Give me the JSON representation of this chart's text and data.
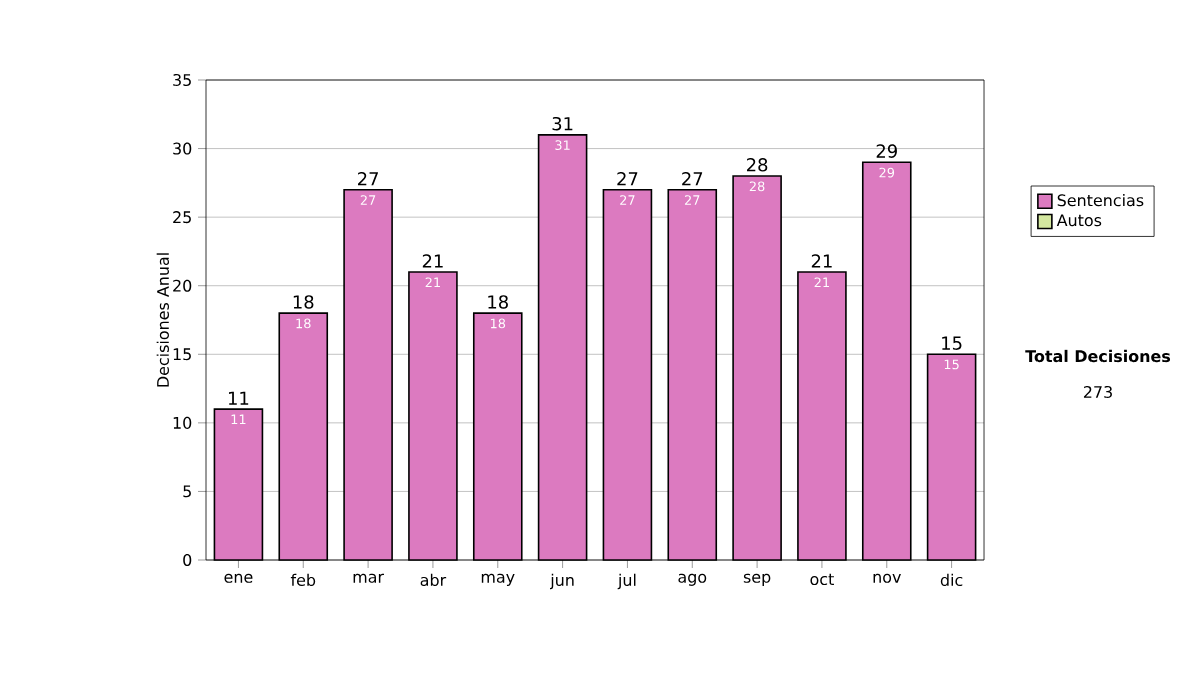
{
  "chart_data": {
    "type": "bar",
    "ylabel": "Decisiones Anual",
    "categories": [
      "ene",
      "feb",
      "mar",
      "abr",
      "may",
      "jun",
      "jul",
      "ago",
      "sep",
      "oct",
      "nov",
      "dic"
    ],
    "series": [
      {
        "name": "Sentencias",
        "color": "#dc7ac0",
        "values": [
          11,
          18,
          27,
          21,
          18,
          31,
          27,
          27,
          28,
          21,
          29,
          15
        ],
        "value_labels": [
          "11",
          "18",
          "27",
          "21",
          "18",
          "31",
          "27",
          "27",
          "28",
          "21",
          "29",
          "15"
        ]
      },
      {
        "name": "Autos",
        "color": "#d4e8a0",
        "values": [
          0,
          0,
          0,
          0,
          0,
          0,
          0,
          0,
          0,
          0,
          0,
          0
        ]
      }
    ],
    "stacked": true,
    "totals": [
      "11",
      "18",
      "27",
      "21",
      "18",
      "31",
      "27",
      "27",
      "28",
      "21",
      "29",
      "15"
    ],
    "ylim": [
      0,
      35
    ],
    "yticks": [
      0,
      5,
      10,
      15,
      20,
      25,
      30,
      35
    ],
    "grid": "y",
    "legend": "right",
    "annotations": [
      "**Total Decisiones**",
      "273"
    ]
  }
}
